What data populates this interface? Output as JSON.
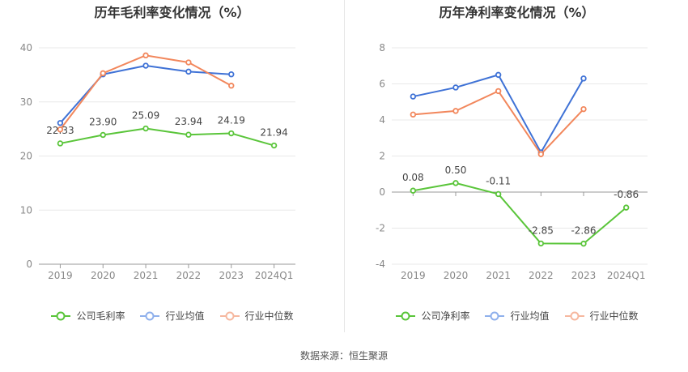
{
  "source": "数据来源：恒生聚源",
  "legend_labels": {
    "industry_avg": "行业均值",
    "industry_median": "行业中位数"
  },
  "colors": {
    "company": "#5ac53a",
    "industry_avg": "#3f72d6",
    "industry_median": "#f2875c",
    "legend_avg": "#8fb0ec",
    "legend_median": "#f6b89f"
  },
  "chart_data": [
    {
      "type": "line",
      "title": "历年毛利率变化情况（%）",
      "categories": [
        "2019",
        "2020",
        "2021",
        "2022",
        "2023",
        "2024Q1"
      ],
      "ylim": [
        0,
        40
      ],
      "yticks": [
        0,
        10,
        20,
        30,
        40
      ],
      "grid": true,
      "legend": "bottom",
      "series": [
        {
          "key": "company",
          "name": "公司毛利率",
          "values": [
            22.33,
            23.9,
            25.09,
            23.94,
            24.19,
            21.94
          ],
          "labels": [
            "22.33",
            "23.90",
            "25.09",
            "23.94",
            "24.19",
            "21.94"
          ]
        },
        {
          "key": "industry_avg",
          "name": "行业均值",
          "values": [
            26.1,
            35.1,
            36.7,
            35.6,
            35.1,
            null
          ]
        },
        {
          "key": "industry_median",
          "name": "行业中位数",
          "values": [
            24.9,
            35.3,
            38.6,
            37.3,
            33.0,
            null
          ]
        }
      ]
    },
    {
      "type": "line",
      "title": "历年净利率变化情况（%）",
      "categories": [
        "2019",
        "2020",
        "2021",
        "2022",
        "2023",
        "2024Q1"
      ],
      "ylim": [
        -4,
        8
      ],
      "yticks": [
        -4,
        -2,
        0,
        2,
        4,
        6,
        8
      ],
      "grid": true,
      "legend": "bottom",
      "series": [
        {
          "key": "company",
          "name": "公司净利率",
          "values": [
            0.08,
            0.5,
            -0.11,
            -2.85,
            -2.86,
            -0.86
          ],
          "labels": [
            "0.08",
            "0.50",
            "-0.11",
            "-2.85",
            "-2.86",
            "-0.86"
          ]
        },
        {
          "key": "industry_avg",
          "name": "行业均值",
          "values": [
            5.3,
            5.8,
            6.5,
            2.2,
            6.3,
            null
          ]
        },
        {
          "key": "industry_median",
          "name": "行业中位数",
          "values": [
            4.3,
            4.5,
            5.6,
            2.1,
            4.6,
            null
          ]
        }
      ]
    }
  ]
}
